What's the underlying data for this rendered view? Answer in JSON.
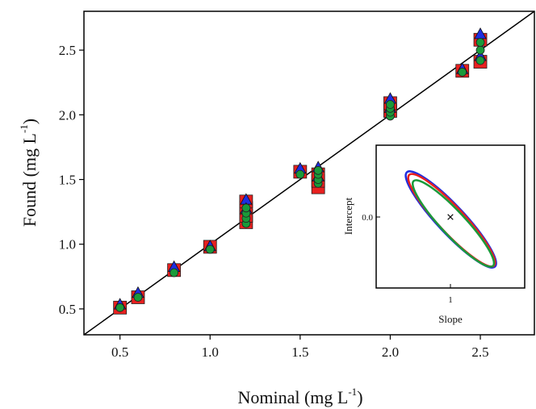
{
  "chart_data": {
    "type": "scatter",
    "xlabel": "Nominal (mg L",
    "xlabel_sup": "-1",
    "xlabel_close": ")",
    "ylabel": "Found (mg L",
    "ylabel_sup": "-1",
    "ylabel_close": ")",
    "xlim": [
      0.3,
      2.8
    ],
    "ylim": [
      0.3,
      2.8
    ],
    "x_ticks": [
      "0.5",
      "1.0",
      "1.5",
      "2.0",
      "2.5"
    ],
    "y_ticks": [
      "0.5",
      "1.0",
      "1.5",
      "2.0",
      "2.5"
    ],
    "identity_line": true,
    "series": [
      {
        "marker": "square",
        "color": "#e8201f",
        "points": [
          [
            0.5,
            0.51
          ],
          [
            0.6,
            0.59
          ],
          [
            0.8,
            0.8
          ],
          [
            1.0,
            0.98
          ],
          [
            1.2,
            1.17
          ],
          [
            1.2,
            1.22
          ],
          [
            1.2,
            1.28
          ],
          [
            1.2,
            1.33
          ],
          [
            1.5,
            1.56
          ],
          [
            1.6,
            1.44
          ],
          [
            1.6,
            1.49
          ],
          [
            1.6,
            1.54
          ],
          [
            2.0,
            2.03
          ],
          [
            2.0,
            2.09
          ],
          [
            2.4,
            2.34
          ],
          [
            2.5,
            2.41
          ],
          [
            2.5,
            2.58
          ]
        ]
      },
      {
        "marker": "triangle",
        "color": "#1f2ee0",
        "points": [
          [
            0.5,
            0.53
          ],
          [
            0.6,
            0.62
          ],
          [
            0.8,
            0.82
          ],
          [
            1.0,
            0.98
          ],
          [
            1.2,
            1.34
          ],
          [
            1.2,
            1.27
          ],
          [
            1.5,
            1.58
          ],
          [
            1.6,
            1.59
          ],
          [
            1.6,
            1.52
          ],
          [
            2.0,
            2.12
          ],
          [
            2.0,
            2.05
          ],
          [
            2.4,
            2.35
          ],
          [
            2.5,
            2.62
          ],
          [
            2.5,
            2.45
          ]
        ]
      },
      {
        "marker": "circle",
        "color": "#1a9a3a",
        "points": [
          [
            0.5,
            0.51
          ],
          [
            0.6,
            0.59
          ],
          [
            0.8,
            0.78
          ],
          [
            1.0,
            0.96
          ],
          [
            1.2,
            1.16
          ],
          [
            1.2,
            1.2
          ],
          [
            1.2,
            1.24
          ],
          [
            1.2,
            1.28
          ],
          [
            1.5,
            1.54
          ],
          [
            1.6,
            1.47
          ],
          [
            1.6,
            1.5
          ],
          [
            1.6,
            1.54
          ],
          [
            1.6,
            1.57
          ],
          [
            2.0,
            1.99
          ],
          [
            2.0,
            2.02
          ],
          [
            2.0,
            2.05
          ],
          [
            2.0,
            2.08
          ],
          [
            2.4,
            2.33
          ],
          [
            2.5,
            2.42
          ],
          [
            2.5,
            2.5
          ],
          [
            2.5,
            2.56
          ]
        ]
      }
    ],
    "inset": {
      "type": "confidence-ellipses",
      "xlabel": "Slope",
      "ylabel": "Intercept",
      "x_tick": "1",
      "y_tick": "0.0",
      "center_marker": "×",
      "ellipses": [
        {
          "color": "#1f2ee0",
          "cx_off": 0.6,
          "cy_off": 3,
          "rx": 80,
          "ry": 17
        },
        {
          "color": "#e8201f",
          "cx_off": 1.5,
          "cy_off": 4,
          "rx": 77,
          "ry": 16
        },
        {
          "color": "#1a9a3a",
          "cx_off": 3.6,
          "cy_off": 8,
          "rx": 72,
          "ry": 15
        }
      ]
    }
  }
}
